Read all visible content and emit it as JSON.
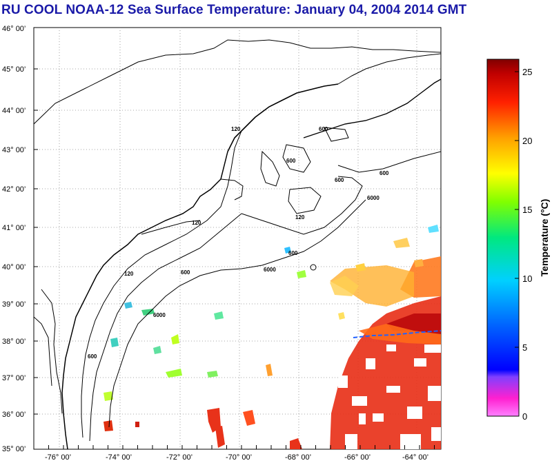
{
  "title": "RU COOL  NOAA-12  Sea Surface Temperature:  January 04, 2004 2014 GMT",
  "map": {
    "lat_labels": [
      "46° 00’",
      "45° 00’",
      "44° 00’",
      "43° 00’",
      "42° 00’",
      "41° 00’",
      "40° 00’",
      "39° 00’",
      "38° 00’",
      "37° 00’",
      "36° 00’",
      "35° 00’"
    ],
    "lon_labels": [
      "-76° 00’",
      "-74° 00’",
      "-72° 00’",
      "-70° 00’",
      "-68° 00’",
      "-66° 00’",
      "-64° 00’"
    ],
    "depth_contour_labels": [
      "600",
      "600",
      "600",
      "600",
      "600",
      "6000",
      "6000",
      "6000",
      "120",
      "120",
      "120",
      "120",
      "600",
      "600"
    ]
  },
  "colorbar": {
    "title": "Temperature (°C)",
    "ticks": [
      "25",
      "20",
      "15",
      "10",
      "5",
      "0"
    ]
  },
  "colors": {
    "title": "#1a1aa8",
    "warm": "#e8321a",
    "hot": "#c81010",
    "cool": "#40d080"
  }
}
